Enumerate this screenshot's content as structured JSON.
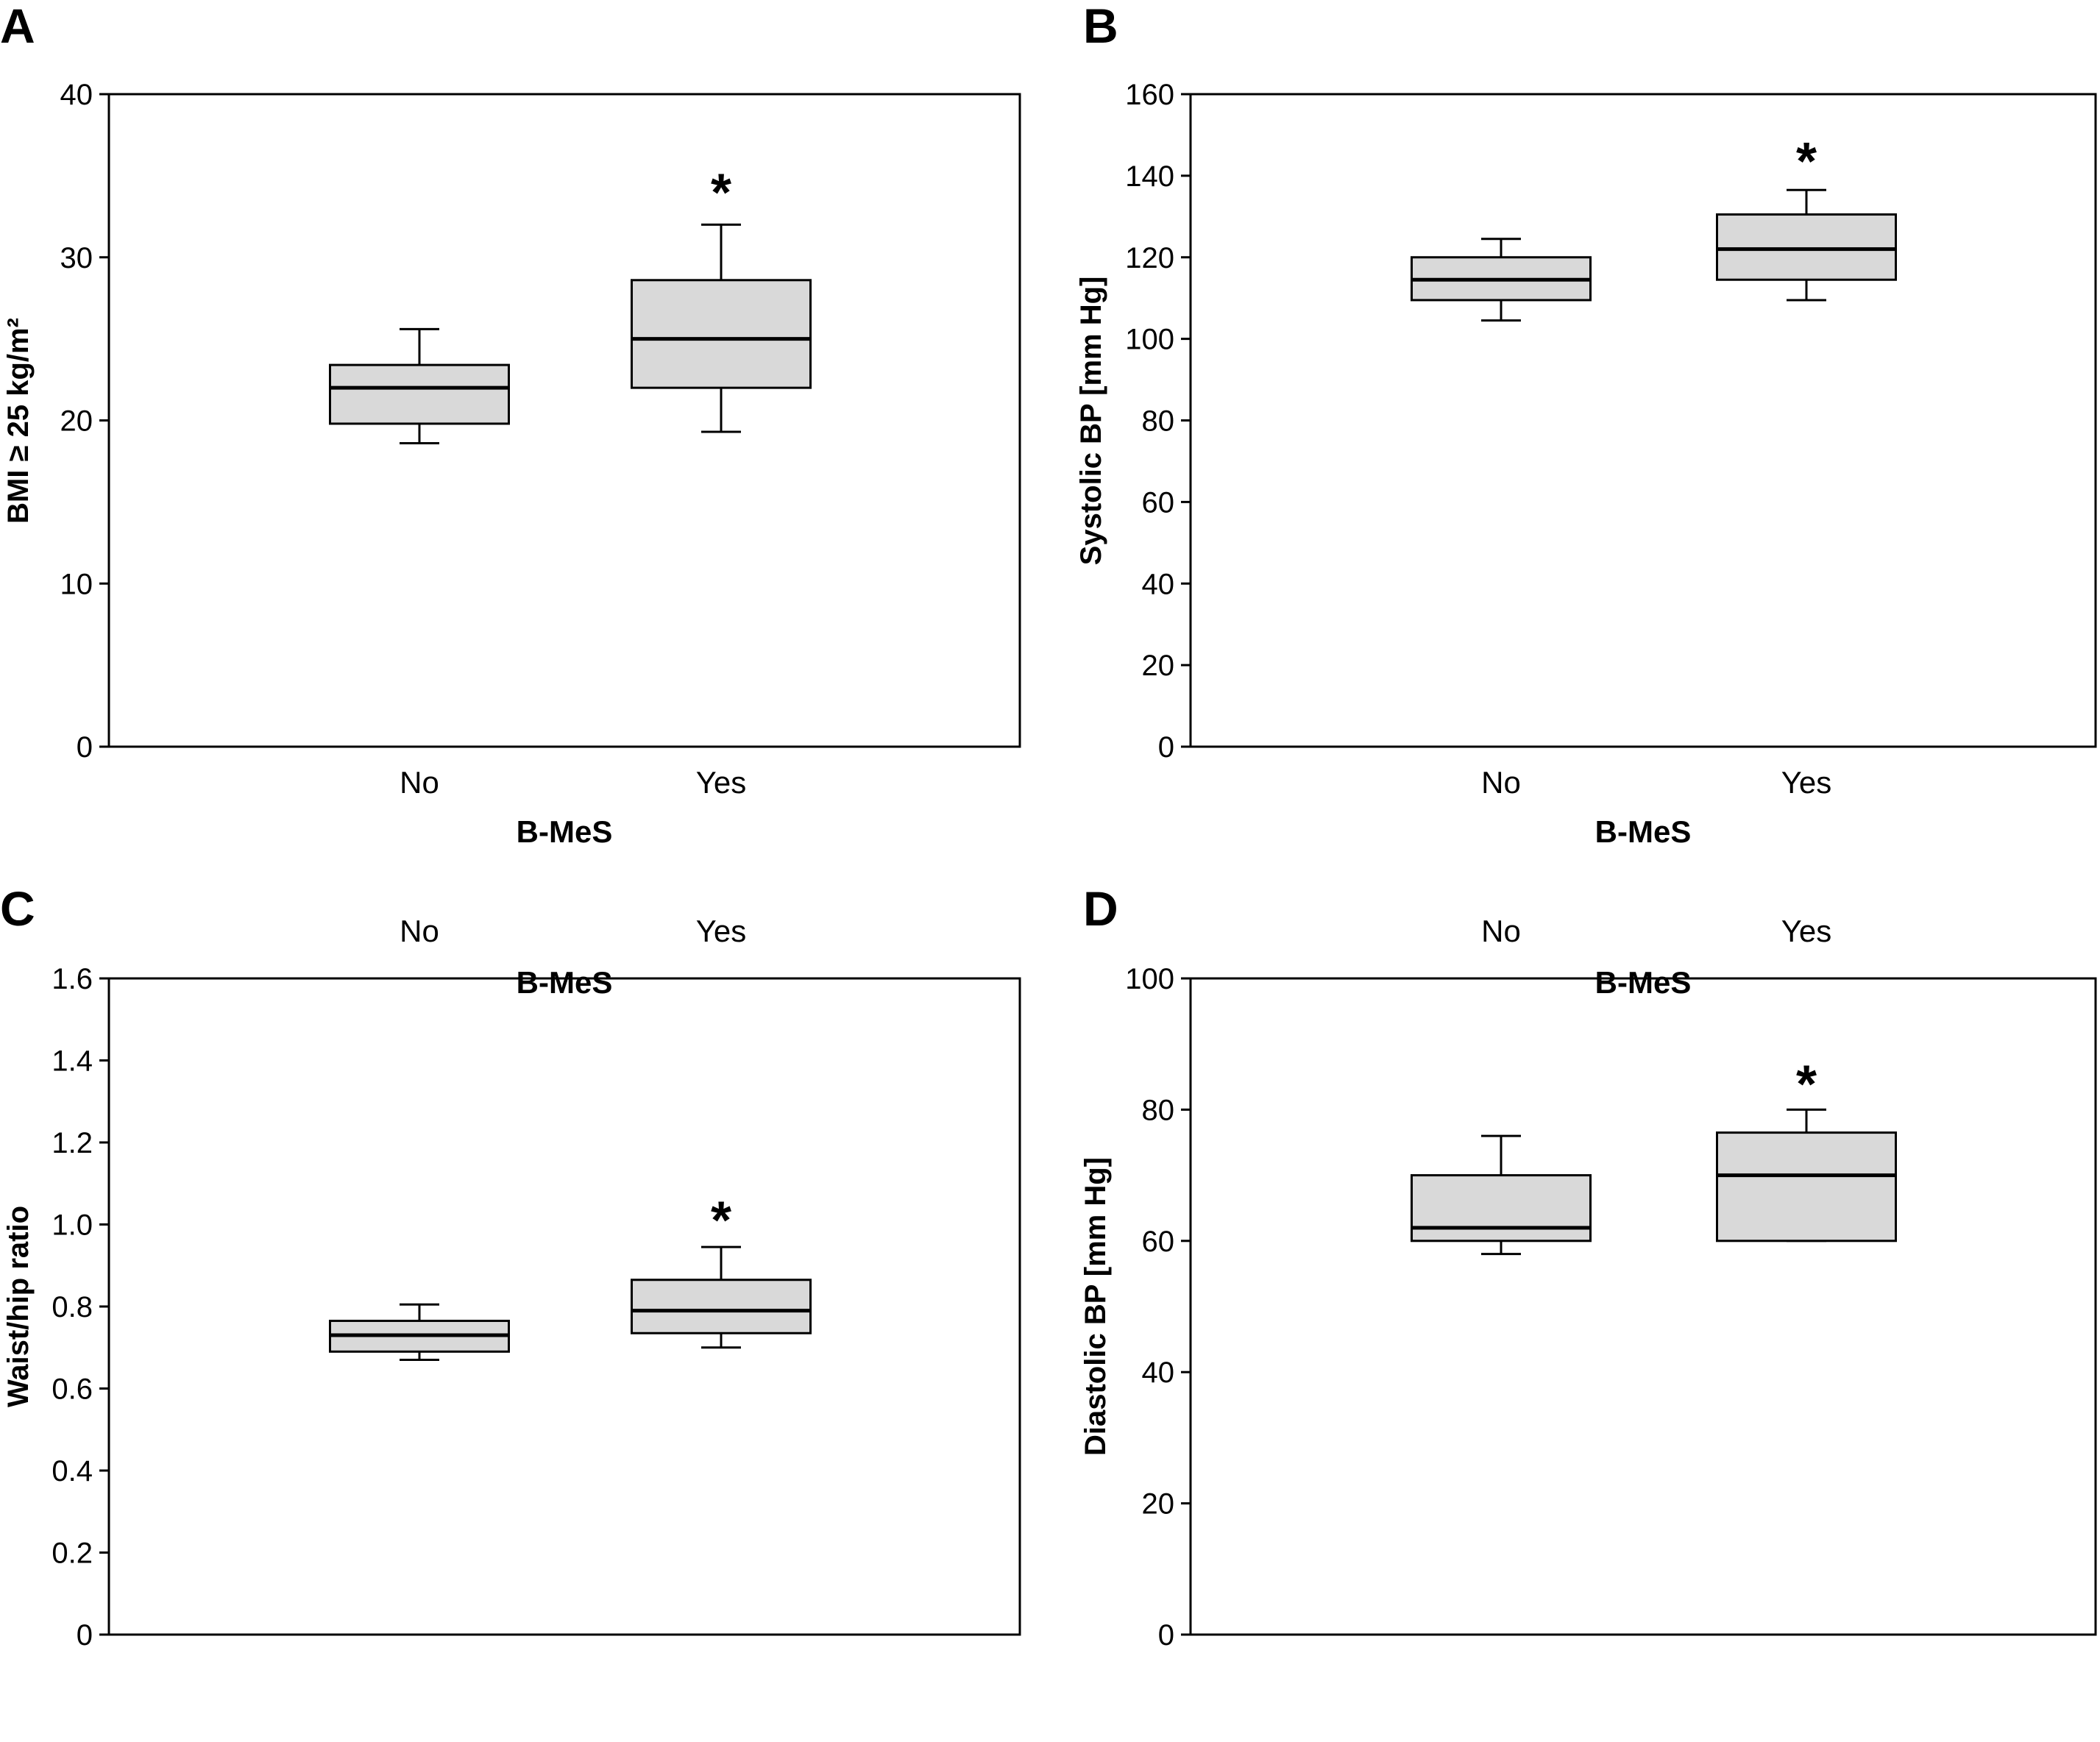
{
  "colors": {
    "box_fill": "#d9d9d9",
    "stroke": "#000000",
    "background": "#ffffff"
  },
  "chart_data": [
    {
      "panel": "A",
      "type": "box",
      "xlabel": "B-MeS",
      "ylabel": "BMI ≥ 25 kg/m²",
      "ylim": [
        0,
        40
      ],
      "yticks": [
        0,
        10,
        20,
        30,
        40
      ],
      "tick_labels": [
        "0",
        "10",
        "20",
        "30",
        "40"
      ],
      "categories": [
        "No",
        "Yes"
      ],
      "boxes": [
        {
          "category": "No",
          "min": 18.6,
          "q1": 19.8,
          "median": 22.0,
          "q3": 23.4,
          "max": 25.6
        },
        {
          "category": "Yes",
          "min": 19.3,
          "q1": 22.0,
          "median": 25.0,
          "q3": 28.6,
          "max": 32.0
        }
      ],
      "annotation": {
        "text": "*",
        "category": "Yes",
        "y": 34.2
      }
    },
    {
      "panel": "B",
      "type": "box",
      "xlabel": "B-MeS",
      "ylabel": "Systolic BP [mm Hg]",
      "ylim": [
        0,
        160
      ],
      "yticks": [
        0,
        20,
        40,
        60,
        80,
        100,
        120,
        140,
        160
      ],
      "tick_labels": [
        "0",
        "20",
        "40",
        "60",
        "80",
        "100",
        "120",
        "140",
        "160"
      ],
      "categories": [
        "No",
        "Yes"
      ],
      "boxes": [
        {
          "category": "No",
          "min": 104.5,
          "q1": 109.5,
          "median": 114.5,
          "q3": 120.0,
          "max": 124.5
        },
        {
          "category": "Yes",
          "min": 109.5,
          "q1": 114.5,
          "median": 122.0,
          "q3": 130.5,
          "max": 136.5
        }
      ],
      "annotation": {
        "text": "*",
        "category": "Yes",
        "y": 144.5
      }
    },
    {
      "panel": "C",
      "type": "box",
      "xlabel": "B-MeS",
      "ylabel": "Waist/hip ratio",
      "ylim": [
        0,
        1.6
      ],
      "yticks": [
        0,
        0.2,
        0.4,
        0.6,
        0.8,
        1.0,
        1.2,
        1.4,
        1.6
      ],
      "tick_labels": [
        "0",
        "0.2",
        "0.4",
        "0.6",
        "0.8",
        "1.0",
        "1.2",
        "1.4",
        "1.6"
      ],
      "categories": [
        "No",
        "Yes"
      ],
      "boxes": [
        {
          "category": "No",
          "min": 0.67,
          "q1": 0.69,
          "median": 0.73,
          "q3": 0.765,
          "max": 0.805
        },
        {
          "category": "Yes",
          "min": 0.7,
          "q1": 0.735,
          "median": 0.79,
          "q3": 0.865,
          "max": 0.945
        }
      ],
      "annotation": {
        "text": "*",
        "category": "Yes",
        "y": 1.02
      }
    },
    {
      "panel": "D",
      "type": "box",
      "xlabel": "B-MeS",
      "ylabel": "Diastolic BP [mm Hg]",
      "ylim": [
        0,
        100
      ],
      "yticks": [
        0,
        20,
        40,
        60,
        80,
        100
      ],
      "tick_labels": [
        "0",
        "20",
        "40",
        "60",
        "80",
        "100"
      ],
      "categories": [
        "No",
        "Yes"
      ],
      "boxes": [
        {
          "category": "No",
          "min": 58.0,
          "q1": 60.0,
          "median": 62.0,
          "q3": 70.0,
          "max": 76.0
        },
        {
          "category": "Yes",
          "min": 60.0,
          "q1": 60.0,
          "median": 70.0,
          "q3": 76.5,
          "max": 80.0
        }
      ],
      "annotation": {
        "text": "*",
        "category": "Yes",
        "y": 84.5
      }
    }
  ]
}
